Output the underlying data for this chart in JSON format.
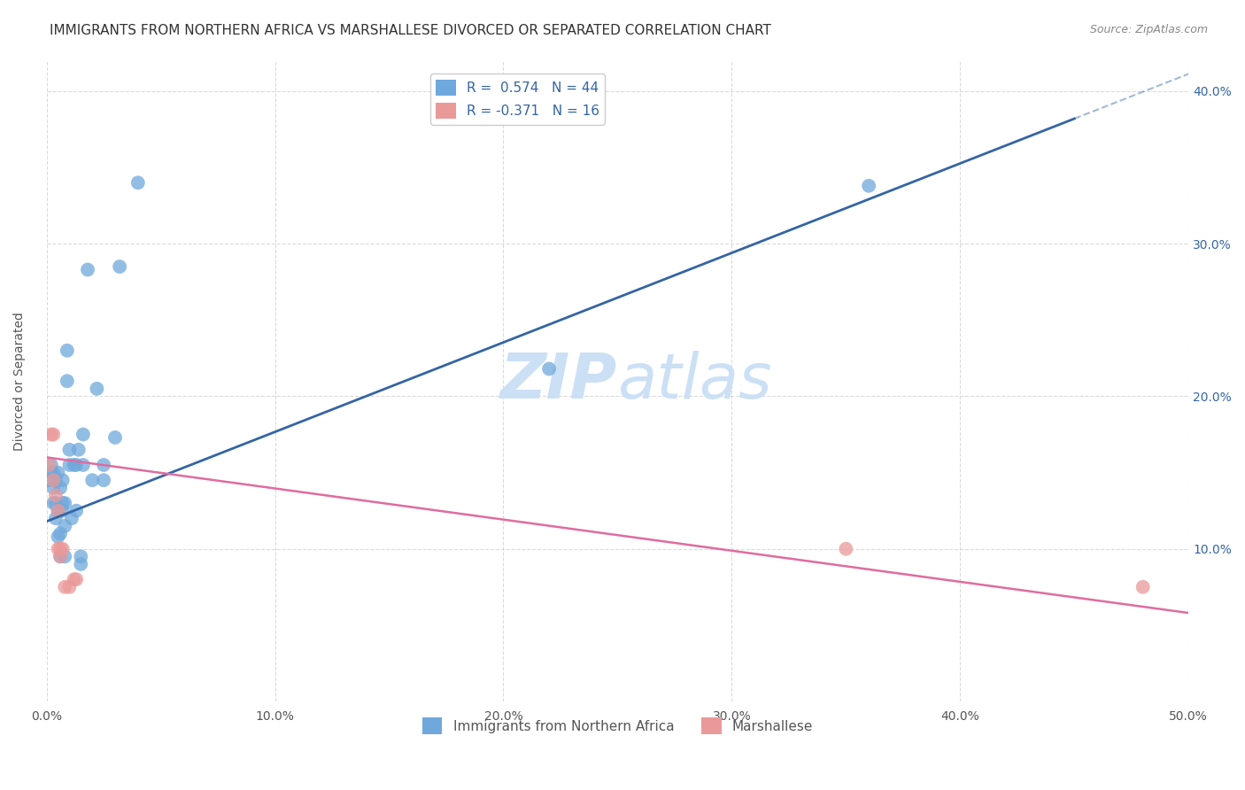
{
  "title": "IMMIGRANTS FROM NORTHERN AFRICA VS MARSHALLESE DIVORCED OR SEPARATED CORRELATION CHART",
  "source": "Source: ZipAtlas.com",
  "ylabel": "Divorced or Separated",
  "xlim": [
    0.0,
    0.5
  ],
  "ylim": [
    0.0,
    0.42
  ],
  "xticks": [
    0.0,
    0.1,
    0.2,
    0.3,
    0.4,
    0.5
  ],
  "yticks": [
    0.0,
    0.1,
    0.2,
    0.3,
    0.4
  ],
  "xtick_labels": [
    "0.0%",
    "10.0%",
    "20.0%",
    "30.0%",
    "40.0%",
    "50.0%"
  ],
  "ytick_labels": [
    "",
    "10.0%",
    "20.0%",
    "30.0%",
    "40.0%"
  ],
  "legend_label1": "Immigrants from Northern Africa",
  "legend_label2": "Marshallese",
  "R1": "0.574",
  "N1": "44",
  "R2": "-0.371",
  "N2": "16",
  "blue_color": "#6fa8dc",
  "pink_color": "#ea9999",
  "line_blue": "#3465a4",
  "line_pink": "#e06c9f",
  "watermark_zip": "ZIP",
  "watermark_atlas": "atlas",
  "blue_points_x": [
    0.001,
    0.002,
    0.002,
    0.003,
    0.003,
    0.003,
    0.004,
    0.004,
    0.004,
    0.005,
    0.005,
    0.005,
    0.006,
    0.006,
    0.006,
    0.007,
    0.007,
    0.007,
    0.008,
    0.008,
    0.008,
    0.009,
    0.009,
    0.01,
    0.01,
    0.011,
    0.012,
    0.013,
    0.013,
    0.014,
    0.015,
    0.015,
    0.016,
    0.016,
    0.018,
    0.02,
    0.022,
    0.025,
    0.025,
    0.03,
    0.032,
    0.04,
    0.22,
    0.36
  ],
  "blue_points_y": [
    0.145,
    0.15,
    0.155,
    0.13,
    0.14,
    0.15,
    0.12,
    0.13,
    0.145,
    0.108,
    0.125,
    0.15,
    0.095,
    0.11,
    0.14,
    0.125,
    0.13,
    0.145,
    0.095,
    0.115,
    0.13,
    0.21,
    0.23,
    0.155,
    0.165,
    0.12,
    0.155,
    0.125,
    0.155,
    0.165,
    0.09,
    0.095,
    0.155,
    0.175,
    0.283,
    0.145,
    0.205,
    0.155,
    0.145,
    0.173,
    0.285,
    0.34,
    0.218,
    0.338
  ],
  "pink_points_x": [
    0.001,
    0.002,
    0.003,
    0.003,
    0.004,
    0.005,
    0.005,
    0.006,
    0.006,
    0.007,
    0.008,
    0.01,
    0.012,
    0.013,
    0.35,
    0.48
  ],
  "pink_points_y": [
    0.155,
    0.175,
    0.145,
    0.175,
    0.135,
    0.1,
    0.125,
    0.1,
    0.095,
    0.1,
    0.075,
    0.075,
    0.08,
    0.08,
    0.1,
    0.075
  ],
  "blue_line_x_start": 0.0,
  "blue_line_x_end": 0.45,
  "blue_line_y_start": 0.118,
  "blue_line_y_end": 0.382,
  "pink_line_x_start": 0.0,
  "pink_line_x_end": 0.5,
  "pink_line_y_start": 0.16,
  "pink_line_y_end": 0.058,
  "grid_color": "#cccccc",
  "background_color": "#ffffff",
  "title_fontsize": 11,
  "axis_label_fontsize": 10,
  "tick_fontsize": 10,
  "legend_fontsize": 11,
  "watermark_color": "#cce0f5",
  "watermark_fontsize": 52
}
